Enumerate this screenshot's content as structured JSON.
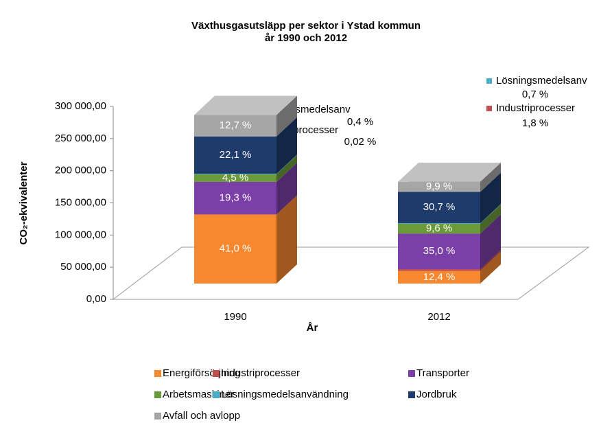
{
  "chart_data": {
    "type": "bar3d_stacked",
    "title": [
      "Växthusgasutsläpp per sektor i Ystad kommun",
      "år 1990 och 2012"
    ],
    "categories": [
      "1990",
      "2012"
    ],
    "xlabel": "År",
    "ylabel": "CO₂-ekvivalenter",
    "ylim": [
      0,
      300000
    ],
    "yticks": [
      {
        "value": 0,
        "label": "0,00"
      },
      {
        "value": 50000,
        "label": "50 000,00"
      },
      {
        "value": 100000,
        "label": "100 000,00"
      },
      {
        "value": 150000,
        "label": "150 000,00"
      },
      {
        "value": 200000,
        "label": "200 000,00"
      },
      {
        "value": 250000,
        "label": "250 000,00"
      },
      {
        "value": 300000,
        "label": "300 000,00"
      }
    ],
    "grid": false,
    "legend": "bottom",
    "series": [
      {
        "name": "Energiförsörjning",
        "color": "#f7882f",
        "values": [
          107400,
          19600
        ],
        "value_labels": [
          "41,0 %",
          "12,4 %"
        ]
      },
      {
        "name": "Industriprocesser",
        "color": "#c0504d",
        "values": [
          50,
          2800
        ],
        "value_labels": [
          "0,02 %",
          "1,8 %"
        ]
      },
      {
        "name": "Transporter",
        "color": "#7b3fa8",
        "values": [
          50600,
          55300
        ],
        "value_labels": [
          "19,3 %",
          "35,0 %"
        ]
      },
      {
        "name": "Arbetsmaskiner",
        "color": "#6b9a3b",
        "values": [
          11800,
          15200
        ],
        "value_labels": [
          "4,5 %",
          "9,6 %"
        ]
      },
      {
        "name": "Lösningsmedelsanvändning",
        "short_name": "Lösningsmedelsanv",
        "color": "#4bacc6",
        "values": [
          1000,
          1100
        ],
        "value_labels": [
          "0,4 %",
          "0,7 %"
        ]
      },
      {
        "name": "Jordbruk",
        "color": "#1f3b6b",
        "values": [
          57900,
          48500
        ],
        "value_labels": [
          "22,1 %",
          "30,7 %"
        ]
      },
      {
        "name": "Avfall och avlopp",
        "color": "#a6a6a6",
        "values": [
          33300,
          15600
        ],
        "value_labels": [
          "12,7 %",
          "9,9 %"
        ]
      }
    ]
  }
}
